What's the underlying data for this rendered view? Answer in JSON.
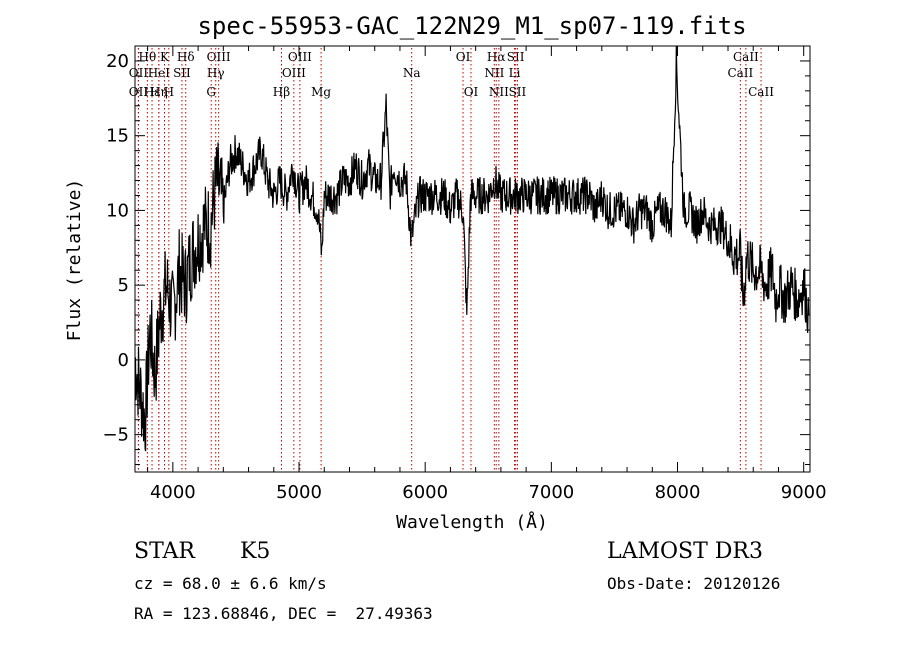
{
  "chart_data": {
    "type": "line",
    "title": "spec-55953-GAC_122N29_M1_sp07-119.fits",
    "xlabel": "Wavelength (Å)",
    "ylabel": "Flux (relative)",
    "xlim": [
      3700,
      9050
    ],
    "ylim": [
      -7.5,
      21
    ],
    "xticks": [
      4000,
      5000,
      6000,
      7000,
      8000,
      9000
    ],
    "yticks": [
      -5,
      0,
      5,
      10,
      15,
      20
    ],
    "series": [
      {
        "name": "flux",
        "x": [
          3700,
          3740,
          3780,
          3820,
          3860,
          3900,
          3950,
          4000,
          4050,
          4100,
          4150,
          4200,
          4250,
          4300,
          4330,
          4350,
          4380,
          4400,
          4450,
          4500,
          4550,
          4600,
          4650,
          4700,
          4750,
          4800,
          4850,
          4900,
          4950,
          5000,
          5050,
          5100,
          5150,
          5180,
          5200,
          5250,
          5300,
          5350,
          5400,
          5450,
          5500,
          5550,
          5600,
          5650,
          5690,
          5720,
          5750,
          5800,
          5850,
          5890,
          5950,
          6000,
          6050,
          6100,
          6150,
          6200,
          6250,
          6300,
          6330,
          6360,
          6400,
          6450,
          6500,
          6550,
          6600,
          6650,
          6700,
          6750,
          6800,
          6850,
          6900,
          6950,
          7000,
          7050,
          7100,
          7150,
          7200,
          7250,
          7300,
          7350,
          7400,
          7450,
          7500,
          7550,
          7600,
          7650,
          7700,
          7750,
          7800,
          7850,
          7900,
          7950,
          7990,
          8050,
          8100,
          8150,
          8200,
          8250,
          8300,
          8350,
          8400,
          8450,
          8500,
          8520,
          8550,
          8600,
          8650,
          8700,
          8750,
          8780,
          8800,
          8850,
          8900,
          8950,
          9000,
          9040
        ],
        "y": [
          0,
          -2,
          -4,
          2,
          -1,
          3,
          5,
          3,
          6,
          5,
          7,
          8,
          9,
          9,
          11,
          12,
          11,
          10,
          13,
          14,
          13,
          12,
          13,
          14,
          12,
          11,
          12,
          11,
          13,
          11,
          12,
          11,
          10,
          7,
          11,
          11,
          11,
          12,
          12,
          13,
          12,
          13,
          12,
          12,
          17,
          11,
          13,
          12,
          12,
          8,
          11,
          11,
          11,
          11,
          11,
          10,
          11,
          10,
          3,
          11,
          11,
          11,
          11,
          12,
          11,
          11,
          11,
          11,
          11,
          11,
          11,
          11,
          11,
          11,
          11,
          11,
          11,
          11,
          11,
          10,
          11,
          10,
          10,
          10,
          10,
          9,
          10,
          10,
          9,
          10,
          10,
          9,
          20,
          10,
          10,
          9,
          10,
          9,
          9,
          9,
          8,
          7,
          7,
          4,
          7,
          6,
          6,
          5,
          6,
          4,
          5,
          4,
          5,
          4,
          5,
          3
        ]
      }
    ],
    "line_markers": [
      {
        "label": "Hθ",
        "x": 3798,
        "row": 0
      },
      {
        "label": "OII",
        "x": 3727,
        "row": 1
      },
      {
        "label": "OII",
        "x": 3727,
        "row": 2
      },
      {
        "label": "Hε",
        "x": 3835,
        "row": 2
      },
      {
        "label": "Hη",
        "x": 3889,
        "row": 2
      },
      {
        "label": "HeI",
        "x": 3889,
        "row": 1
      },
      {
        "label": "K",
        "x": 3934,
        "row": 0
      },
      {
        "label": "SII",
        "x": 4072,
        "row": 1
      },
      {
        "label": "H",
        "x": 3968,
        "row": 2
      },
      {
        "label": "Hδ",
        "x": 4102,
        "row": 0
      },
      {
        "label": "OIII",
        "x": 4363,
        "row": 0
      },
      {
        "label": "Hγ",
        "x": 4340,
        "row": 1
      },
      {
        "label": "G",
        "x": 4304,
        "row": 2
      },
      {
        "label": "Hβ",
        "x": 4861,
        "row": 2
      },
      {
        "label": "OIII",
        "x": 5007,
        "row": 0
      },
      {
        "label": "OIII",
        "x": 4959,
        "row": 1
      },
      {
        "label": "Mg",
        "x": 5175,
        "row": 2
      },
      {
        "label": "Na",
        "x": 5893,
        "row": 1
      },
      {
        "label": "OI",
        "x": 6300,
        "row": 0
      },
      {
        "label": "OI",
        "x": 6363,
        "row": 2
      },
      {
        "label": "Hα",
        "x": 6563,
        "row": 0
      },
      {
        "label": "NII",
        "x": 6548,
        "row": 1
      },
      {
        "label": "NII",
        "x": 6584,
        "row": 2
      },
      {
        "label": "SII",
        "x": 6717,
        "row": 0
      },
      {
        "label": "Li",
        "x": 6708,
        "row": 1
      },
      {
        "label": "SII",
        "x": 6731,
        "row": 2
      },
      {
        "label": "CaII",
        "x": 8542,
        "row": 0
      },
      {
        "label": "CaII",
        "x": 8498,
        "row": 1
      },
      {
        "label": "CaII",
        "x": 8662,
        "row": 2
      }
    ]
  },
  "info": {
    "object_class": "STAR",
    "subclass": "K5",
    "survey": "LAMOST DR3",
    "redshift": "cz = 68.0 ± 6.6 km/s",
    "obs_date": "Obs-Date: 20120126",
    "coords": "RA = 123.68846, DEC =  27.49363"
  }
}
